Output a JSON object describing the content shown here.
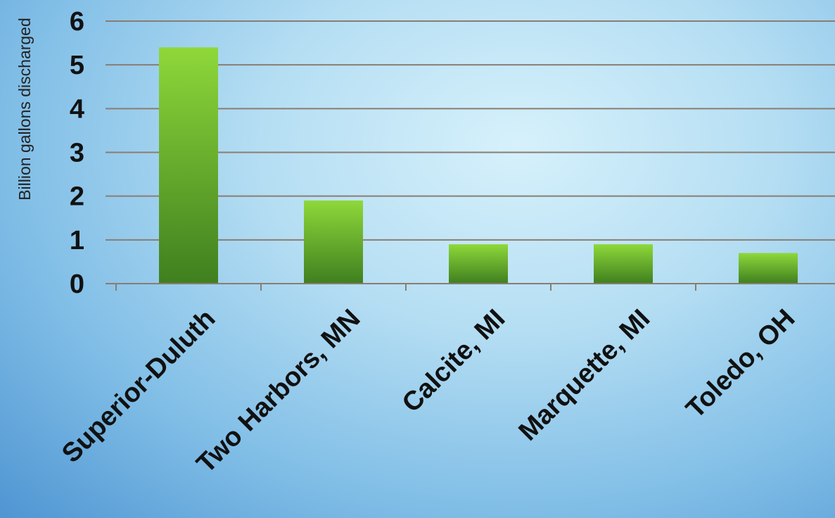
{
  "colors": {
    "bar_light": "#8fd83a",
    "bar_dark": "#3f7f1f",
    "gridline": "#8a7d72",
    "axis": "#8a7d72"
  },
  "chart_data": {
    "type": "bar",
    "title": "",
    "xlabel": "",
    "ylabel": "Billion gallons discharged",
    "categories": [
      "Superior-Duluth",
      "Two Harbors, MN",
      "Calcite, MI",
      "Marquette, MI",
      "Toledo, OH"
    ],
    "values": [
      5.4,
      1.9,
      0.9,
      0.9,
      0.7
    ],
    "ylim": [
      0,
      6
    ],
    "yticks": [
      "0",
      "1",
      "2",
      "3",
      "4",
      "5",
      "6"
    ],
    "grid": true,
    "legend": "none"
  }
}
